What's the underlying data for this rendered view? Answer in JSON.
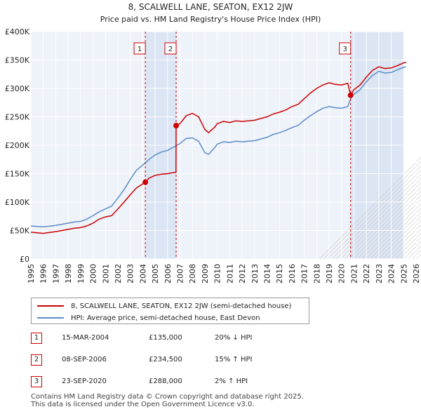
{
  "chart_data": {
    "type": "line",
    "title": "8, SCALWELL LANE, SEATON, EX12 2JW",
    "subtitle": "Price paid vs. HM Land Registry's House Price Index (HPI)",
    "xlim": [
      1995,
      2026
    ],
    "ylim": [
      0,
      400000
    ],
    "x_ticks": [
      "1995",
      "1996",
      "1997",
      "1998",
      "1999",
      "2000",
      "2001",
      "2002",
      "2003",
      "2004",
      "2005",
      "2006",
      "2007",
      "2008",
      "2009",
      "2010",
      "2011",
      "2012",
      "2013",
      "2014",
      "2015",
      "2016",
      "2017",
      "2018",
      "2019",
      "2020",
      "2021",
      "2022",
      "2023",
      "2024",
      "2025",
      "2026"
    ],
    "y_ticks": [
      {
        "value": 0,
        "label": "£0"
      },
      {
        "value": 50000,
        "label": "£50K"
      },
      {
        "value": 100000,
        "label": "£100K"
      },
      {
        "value": 150000,
        "label": "£150K"
      },
      {
        "value": 200000,
        "label": "£200K"
      },
      {
        "value": 250000,
        "label": "£250K"
      },
      {
        "value": 300000,
        "label": "£300K"
      },
      {
        "value": 350000,
        "label": "£350K"
      },
      {
        "value": 400000,
        "label": "£400K"
      }
    ],
    "forecast_from": 2025.0,
    "series": [
      {
        "name": "8, SCALWELL LANE, SEATON, EX12 2JW (semi-detached house)",
        "color": "#cc0000",
        "points": [
          [
            1995.0,
            47000
          ],
          [
            1995.5,
            46000
          ],
          [
            1996.0,
            45000
          ],
          [
            1996.5,
            46500
          ],
          [
            1997.0,
            48000
          ],
          [
            1997.5,
            50000
          ],
          [
            1998.0,
            52000
          ],
          [
            1998.5,
            54000
          ],
          [
            1999.0,
            55000
          ],
          [
            1999.5,
            58000
          ],
          [
            2000.0,
            63000
          ],
          [
            2000.5,
            70000
          ],
          [
            2001.0,
            74000
          ],
          [
            2001.5,
            76000
          ],
          [
            2002.0,
            88000
          ],
          [
            2002.5,
            100000
          ],
          [
            2003.0,
            113000
          ],
          [
            2003.5,
            125000
          ],
          [
            2004.0,
            132000
          ],
          [
            2004.21,
            135000
          ],
          [
            2004.5,
            142000
          ],
          [
            2005.0,
            147000
          ],
          [
            2005.5,
            149000
          ],
          [
            2006.0,
            150000
          ],
          [
            2006.5,
            152000
          ],
          [
            2006.68,
            152000
          ],
          [
            2006.69,
            234500
          ],
          [
            2007.0,
            238000
          ],
          [
            2007.5,
            252000
          ],
          [
            2008.0,
            256000
          ],
          [
            2008.5,
            250000
          ],
          [
            2009.0,
            228000
          ],
          [
            2009.3,
            222000
          ],
          [
            2009.8,
            232000
          ],
          [
            2010.0,
            238000
          ],
          [
            2010.5,
            242000
          ],
          [
            2011.0,
            240000
          ],
          [
            2011.5,
            243000
          ],
          [
            2012.0,
            242000
          ],
          [
            2012.5,
            243000
          ],
          [
            2013.0,
            244000
          ],
          [
            2013.5,
            247000
          ],
          [
            2014.0,
            250000
          ],
          [
            2014.5,
            255000
          ],
          [
            2015.0,
            258000
          ],
          [
            2015.5,
            262000
          ],
          [
            2016.0,
            268000
          ],
          [
            2016.5,
            272000
          ],
          [
            2017.0,
            282000
          ],
          [
            2017.5,
            292000
          ],
          [
            2018.0,
            300000
          ],
          [
            2018.5,
            306000
          ],
          [
            2019.0,
            310000
          ],
          [
            2019.5,
            307000
          ],
          [
            2020.0,
            306000
          ],
          [
            2020.5,
            309000
          ],
          [
            2020.73,
            288000
          ],
          [
            2021.0,
            298000
          ],
          [
            2021.5,
            306000
          ],
          [
            2022.0,
            320000
          ],
          [
            2022.5,
            332000
          ],
          [
            2023.0,
            338000
          ],
          [
            2023.5,
            335000
          ],
          [
            2024.0,
            336000
          ],
          [
            2024.5,
            340000
          ],
          [
            2025.0,
            345000
          ],
          [
            2025.2,
            346000
          ]
        ]
      },
      {
        "name": "HPI: Average price, semi-detached house, East Devon",
        "color": "#5b8cc8",
        "points": [
          [
            1995.0,
            58000
          ],
          [
            1995.5,
            57000
          ],
          [
            1996.0,
            56500
          ],
          [
            1996.5,
            57500
          ],
          [
            1997.0,
            59000
          ],
          [
            1997.5,
            61000
          ],
          [
            1998.0,
            63000
          ],
          [
            1998.5,
            65000
          ],
          [
            1999.0,
            66000
          ],
          [
            1999.5,
            70000
          ],
          [
            2000.0,
            76000
          ],
          [
            2000.5,
            83000
          ],
          [
            2001.0,
            88000
          ],
          [
            2001.5,
            93000
          ],
          [
            2002.0,
            107000
          ],
          [
            2002.5,
            122000
          ],
          [
            2003.0,
            140000
          ],
          [
            2003.5,
            156000
          ],
          [
            2004.0,
            165000
          ],
          [
            2004.5,
            175000
          ],
          [
            2005.0,
            183000
          ],
          [
            2005.5,
            188000
          ],
          [
            2006.0,
            191000
          ],
          [
            2006.5,
            197000
          ],
          [
            2007.0,
            203000
          ],
          [
            2007.5,
            212000
          ],
          [
            2008.0,
            213000
          ],
          [
            2008.5,
            207000
          ],
          [
            2009.0,
            187000
          ],
          [
            2009.3,
            184000
          ],
          [
            2009.8,
            196000
          ],
          [
            2010.0,
            202000
          ],
          [
            2010.5,
            206000
          ],
          [
            2011.0,
            205000
          ],
          [
            2011.5,
            207000
          ],
          [
            2012.0,
            206000
          ],
          [
            2012.5,
            207000
          ],
          [
            2013.0,
            208000
          ],
          [
            2013.5,
            211000
          ],
          [
            2014.0,
            214000
          ],
          [
            2014.5,
            219000
          ],
          [
            2015.0,
            222000
          ],
          [
            2015.5,
            226000
          ],
          [
            2016.0,
            231000
          ],
          [
            2016.5,
            235000
          ],
          [
            2017.0,
            244000
          ],
          [
            2017.5,
            252000
          ],
          [
            2018.0,
            259000
          ],
          [
            2018.5,
            265000
          ],
          [
            2019.0,
            268000
          ],
          [
            2019.5,
            266000
          ],
          [
            2020.0,
            265000
          ],
          [
            2020.5,
            268000
          ],
          [
            2020.73,
            282000
          ],
          [
            2021.0,
            290000
          ],
          [
            2021.5,
            298000
          ],
          [
            2022.0,
            312000
          ],
          [
            2022.5,
            323000
          ],
          [
            2023.0,
            330000
          ],
          [
            2023.5,
            327000
          ],
          [
            2024.0,
            328000
          ],
          [
            2024.5,
            333000
          ],
          [
            2025.0,
            337000
          ],
          [
            2025.2,
            338000
          ]
        ]
      }
    ],
    "sales": [
      {
        "num": "1",
        "x": 2004.21,
        "price": 135000
      },
      {
        "num": "2",
        "x": 2006.69,
        "price": 234500
      },
      {
        "num": "3",
        "x": 2020.73,
        "price": 288000
      }
    ]
  },
  "legend": {
    "property": "8, SCALWELL LANE, SEATON, EX12 2JW (semi-detached house)",
    "hpi": "HPI: Average price, semi-detached house, East Devon"
  },
  "transactions": [
    {
      "num": "1",
      "date": "15-MAR-2004",
      "price": "£135,000",
      "hpi": "20% ↓ HPI"
    },
    {
      "num": "2",
      "date": "08-SEP-2006",
      "price": "£234,500",
      "hpi": "15% ↑ HPI"
    },
    {
      "num": "3",
      "date": "23-SEP-2020",
      "price": "£288,000",
      "hpi": "2% ↑ HPI"
    }
  ],
  "footer": {
    "line1": "Contains HM Land Registry data © Crown copyright and database right 2025.",
    "line2": "This data is licensed under the Open Government Licence v3.0."
  }
}
